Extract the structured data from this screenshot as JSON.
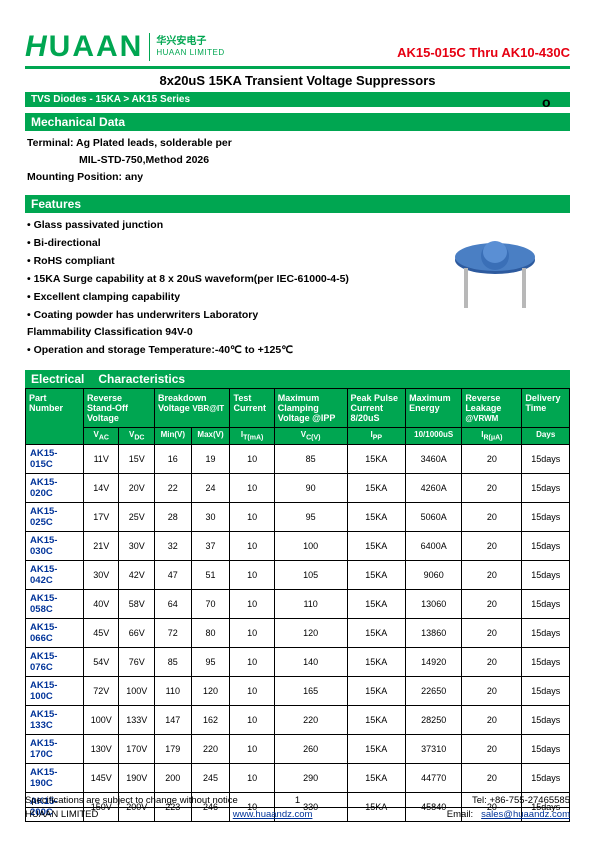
{
  "header": {
    "logo_main": "HUAAN",
    "logo_cn": "华兴安电子",
    "logo_en": "HUAAN LIMITED",
    "part_range": "AK15-015C Thru AK10-430C"
  },
  "title": "8x20uS 15KA Transient Voltage Suppressors",
  "breadcrumb": "TVS Diodes -    15KA > AK15 Series",
  "rohs": "RoHS",
  "sections": {
    "mech_head": "Mechanical Data",
    "mech_l1": "Terminal: Ag Plated leads, solderable per",
    "mech_l2": "MIL-STD-750,Method 2026",
    "mech_l3": "Mounting Position: any",
    "feat_head": "Features",
    "feat_items": [
      "• Glass passivated junction",
      "• Bi-directional",
      "• RoHS compliant",
      "• 15KA Surge capability at 8 x 20uS waveform(per IEC-61000-4-5)",
      "• Excellent clamping capability",
      "• Coating powder has underwriters Laboratory",
      "Flammability Classification 94V-0",
      "• Operation and storage Temperature:-40℃ to +125℃"
    ],
    "elec_head_1": "Electrical",
    "elec_head_2": "Characteristics"
  },
  "table": {
    "headers": {
      "part": "Part   Number",
      "reverse": "Reverse Stand-Off Voltage",
      "breakdown": "Breakdown Voltage ",
      "breakdown_sym": "VBR@IT",
      "test": "Test Current",
      "clamp": "Maximum Clamping Voltage @IPP",
      "peak": "Peak Pulse Current 8/20uS",
      "energy": "Maximum Energy",
      "leak": "Reverse Leakage ",
      "leak_sym": "@VRWM",
      "deliv": "Delivery Time"
    },
    "subheaders": {
      "vac": "VAC",
      "vdc": "VDC",
      "min": "Min(V)",
      "max": "Max(V)",
      "it": "IT(mA)",
      "vc": "VC(V)",
      "ipp": "IPP",
      "en": "10/1000uS",
      "ir": "IR(μA)",
      "days": "Days"
    },
    "rows": [
      {
        "part": "AK15-015C",
        "vac": "11V",
        "vdc": "15V",
        "min": "16",
        "max": "19",
        "it": "10",
        "vc": "85",
        "ipp": "15KA",
        "en": "3460A",
        "ir": "20",
        "days": "15days"
      },
      {
        "part": "AK15-020C",
        "vac": "14V",
        "vdc": "20V",
        "min": "22",
        "max": "24",
        "it": "10",
        "vc": "90",
        "ipp": "15KA",
        "en": "4260A",
        "ir": "20",
        "days": "15days"
      },
      {
        "part": "AK15-025C",
        "vac": "17V",
        "vdc": "25V",
        "min": "28",
        "max": "30",
        "it": "10",
        "vc": "95",
        "ipp": "15KA",
        "en": "5060A",
        "ir": "20",
        "days": "15days"
      },
      {
        "part": "AK15-030C",
        "vac": "21V",
        "vdc": "30V",
        "min": "32",
        "max": "37",
        "it": "10",
        "vc": "100",
        "ipp": "15KA",
        "en": "6400A",
        "ir": "20",
        "days": "15days"
      },
      {
        "part": "AK15-042C",
        "vac": "30V",
        "vdc": "42V",
        "min": "47",
        "max": "51",
        "it": "10",
        "vc": "105",
        "ipp": "15KA",
        "en": "9060",
        "ir": "20",
        "days": "15days"
      },
      {
        "part": "AK15-058C",
        "vac": "40V",
        "vdc": "58V",
        "min": "64",
        "max": "70",
        "it": "10",
        "vc": "110",
        "ipp": "15KA",
        "en": "13060",
        "ir": "20",
        "days": "15days"
      },
      {
        "part": "AK15-066C",
        "vac": "45V",
        "vdc": "66V",
        "min": "72",
        "max": "80",
        "it": "10",
        "vc": "120",
        "ipp": "15KA",
        "en": "13860",
        "ir": "20",
        "days": "15days"
      },
      {
        "part": "AK15-076C",
        "vac": "54V",
        "vdc": "76V",
        "min": "85",
        "max": "95",
        "it": "10",
        "vc": "140",
        "ipp": "15KA",
        "en": "14920",
        "ir": "20",
        "days": "15days"
      },
      {
        "part": "AK15-100C",
        "vac": "72V",
        "vdc": "100V",
        "min": "110",
        "max": "120",
        "it": "10",
        "vc": "165",
        "ipp": "15KA",
        "en": "22650",
        "ir": "20",
        "days": "15days"
      },
      {
        "part": "AK15-133C",
        "vac": "100V",
        "vdc": "133V",
        "min": "147",
        "max": "162",
        "it": "10",
        "vc": "220",
        "ipp": "15KA",
        "en": "28250",
        "ir": "20",
        "days": "15days"
      },
      {
        "part": "AK15-170C",
        "vac": "130V",
        "vdc": "170V",
        "min": "179",
        "max": "220",
        "it": "10",
        "vc": "260",
        "ipp": "15KA",
        "en": "37310",
        "ir": "20",
        "days": "15days"
      },
      {
        "part": "AK15-190C",
        "vac": "145V",
        "vdc": "190V",
        "min": "200",
        "max": "245",
        "it": "10",
        "vc": "290",
        "ipp": "15KA",
        "en": "44770",
        "ir": "20",
        "days": "15days"
      },
      {
        "part": "AK15-200C",
        "vac": "150V",
        "vdc": "200V",
        "min": "223",
        "max": "246",
        "it": "10",
        "vc": "330",
        "ipp": "15KA",
        "en": "45840",
        "ir": "20",
        "days": "15days"
      }
    ]
  },
  "footer": {
    "spec_note": "Specifications are subject to change without notice",
    "page": "1",
    "tel": "Tel:    +86-755-27465585",
    "company": "HUAAN LIMITED",
    "web": "www.huaandz.com",
    "email_lbl": "Email:",
    "email": "sales@huaandz.com"
  },
  "colors": {
    "green": "#00a651",
    "red": "#e60012",
    "link": "#003399"
  },
  "component": {
    "body_color": "#3a6fb7",
    "lead_color": "#c0c0c0"
  }
}
